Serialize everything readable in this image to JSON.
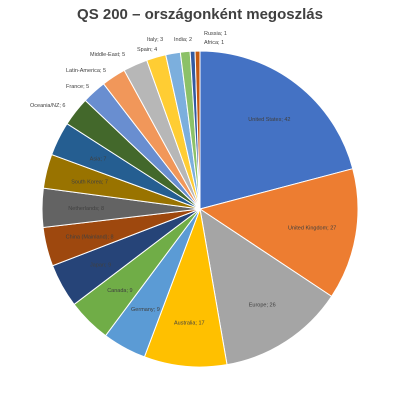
{
  "chart_data": {
    "type": "pie",
    "title": "QS 200 – országonként megoszlás",
    "slices": [
      {
        "label": "United States",
        "value": 42,
        "color": "#4472c4",
        "text": "United States; 42"
      },
      {
        "label": "United Kingdom",
        "value": 27,
        "color": "#ed7d31",
        "text": "United Kingdom; 27"
      },
      {
        "label": "Europe",
        "value": 26,
        "color": "#a5a5a5",
        "text": "Europe; 26"
      },
      {
        "label": "Australia",
        "value": 17,
        "color": "#ffc000",
        "text": "Australia; 17"
      },
      {
        "label": "Germany",
        "value": 9,
        "color": "#5b9bd5",
        "text": "Germany; 9"
      },
      {
        "label": "Canada",
        "value": 9,
        "color": "#70ad47",
        "text": "Canada; 9"
      },
      {
        "label": "Japan",
        "value": 9,
        "color": "#264478",
        "text": "Japan; 9"
      },
      {
        "label": "China (Mainland)",
        "value": 8,
        "color": "#9e480e",
        "text": "China (Mainland); 8"
      },
      {
        "label": "Netherlands",
        "value": 8,
        "color": "#636363",
        "text": "Netherlands; 8"
      },
      {
        "label": "South Korea",
        "value": 7,
        "color": "#997300",
        "text": "South Korea; 7"
      },
      {
        "label": "Asia",
        "value": 7,
        "color": "#255e91",
        "text": "Asia; 7"
      },
      {
        "label": "Oceania/NZ",
        "value": 6,
        "color": "#43682b",
        "text": "Oceania/NZ; 6"
      },
      {
        "label": "France",
        "value": 5,
        "color": "#698ed0",
        "text": "France; 5"
      },
      {
        "label": "Latin-America",
        "value": 5,
        "color": "#f1975a",
        "text": "Latin-America; 5"
      },
      {
        "label": "Middle-East",
        "value": 5,
        "color": "#b7b7b7",
        "text": "Middle-East; 5"
      },
      {
        "label": "Spain",
        "value": 4,
        "color": "#ffcd33",
        "text": "Spain; 4"
      },
      {
        "label": "Italy",
        "value": 3,
        "color": "#7cafdd",
        "text": "Italy; 3"
      },
      {
        "label": "India",
        "value": 2,
        "color": "#8cc168",
        "text": "India; 2"
      },
      {
        "label": "Russia",
        "value": 1,
        "color": "#335aa1",
        "text": "Russia; 1"
      },
      {
        "label": "Africa",
        "value": 1,
        "color": "#c55a11",
        "text": "Africa; 1"
      }
    ]
  }
}
